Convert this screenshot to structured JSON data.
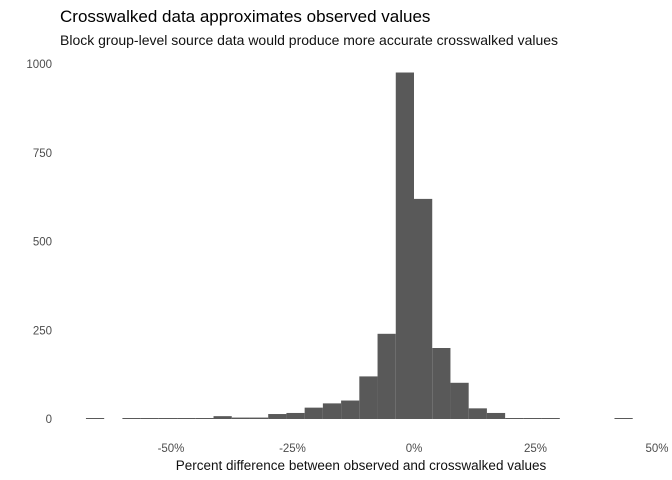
{
  "chart_data": {
    "type": "bar",
    "title": "Crosswalked data approximates observed values",
    "subtitle": "Block group-level source data would produce more accurate crosswalked values",
    "xlabel": "Percent difference between observed and crosswalked values",
    "ylabel": "",
    "xlim": [
      -0.66,
      0.5
    ],
    "ylim": [
      0,
      1000
    ],
    "bin_width": 0.0375,
    "x_ticks": [
      -0.5,
      -0.25,
      0,
      0.25,
      0.5
    ],
    "x_tick_labels": [
      "-50%",
      "-25%",
      "0%",
      "25%",
      "50%"
    ],
    "y_ticks": [
      0,
      250,
      500,
      750,
      1000
    ],
    "y_tick_labels": [
      "0",
      "250",
      "500",
      "750",
      "1000"
    ],
    "bins": [
      {
        "x0": -0.675,
        "x1": -0.6375,
        "count": 2
      },
      {
        "x0": -0.6375,
        "x1": -0.6,
        "count": 0
      },
      {
        "x0": -0.6,
        "x1": -0.5625,
        "count": 1
      },
      {
        "x0": -0.5625,
        "x1": -0.525,
        "count": 1
      },
      {
        "x0": -0.525,
        "x1": -0.4875,
        "count": 1
      },
      {
        "x0": -0.4875,
        "x1": -0.45,
        "count": 1
      },
      {
        "x0": -0.45,
        "x1": -0.4125,
        "count": 1
      },
      {
        "x0": -0.4125,
        "x1": -0.375,
        "count": 8
      },
      {
        "x0": -0.375,
        "x1": -0.3375,
        "count": 4
      },
      {
        "x0": -0.3375,
        "x1": -0.3,
        "count": 4
      },
      {
        "x0": -0.3,
        "x1": -0.2625,
        "count": 14
      },
      {
        "x0": -0.2625,
        "x1": -0.225,
        "count": 17
      },
      {
        "x0": -0.225,
        "x1": -0.1875,
        "count": 32
      },
      {
        "x0": -0.1875,
        "x1": -0.15,
        "count": 44
      },
      {
        "x0": -0.15,
        "x1": -0.1125,
        "count": 52
      },
      {
        "x0": -0.1125,
        "x1": -0.075,
        "count": 120
      },
      {
        "x0": -0.075,
        "x1": -0.0375,
        "count": 240
      },
      {
        "x0": -0.0375,
        "x1": 0.0,
        "count": 976
      },
      {
        "x0": 0.0,
        "x1": 0.0375,
        "count": 620
      },
      {
        "x0": 0.0375,
        "x1": 0.075,
        "count": 200
      },
      {
        "x0": 0.075,
        "x1": 0.1125,
        "count": 102
      },
      {
        "x0": 0.1125,
        "x1": 0.15,
        "count": 30
      },
      {
        "x0": 0.15,
        "x1": 0.1875,
        "count": 17
      },
      {
        "x0": 0.1875,
        "x1": 0.225,
        "count": 2
      },
      {
        "x0": 0.225,
        "x1": 0.2625,
        "count": 2
      },
      {
        "x0": 0.2625,
        "x1": 0.3,
        "count": 1
      },
      {
        "x0": 0.3,
        "x1": 0.3375,
        "count": 0
      },
      {
        "x0": 0.3375,
        "x1": 0.375,
        "count": 0
      },
      {
        "x0": 0.375,
        "x1": 0.4125,
        "count": 0
      },
      {
        "x0": 0.4125,
        "x1": 0.45,
        "count": 2
      }
    ],
    "grid": false,
    "bar_color": "#595959"
  }
}
